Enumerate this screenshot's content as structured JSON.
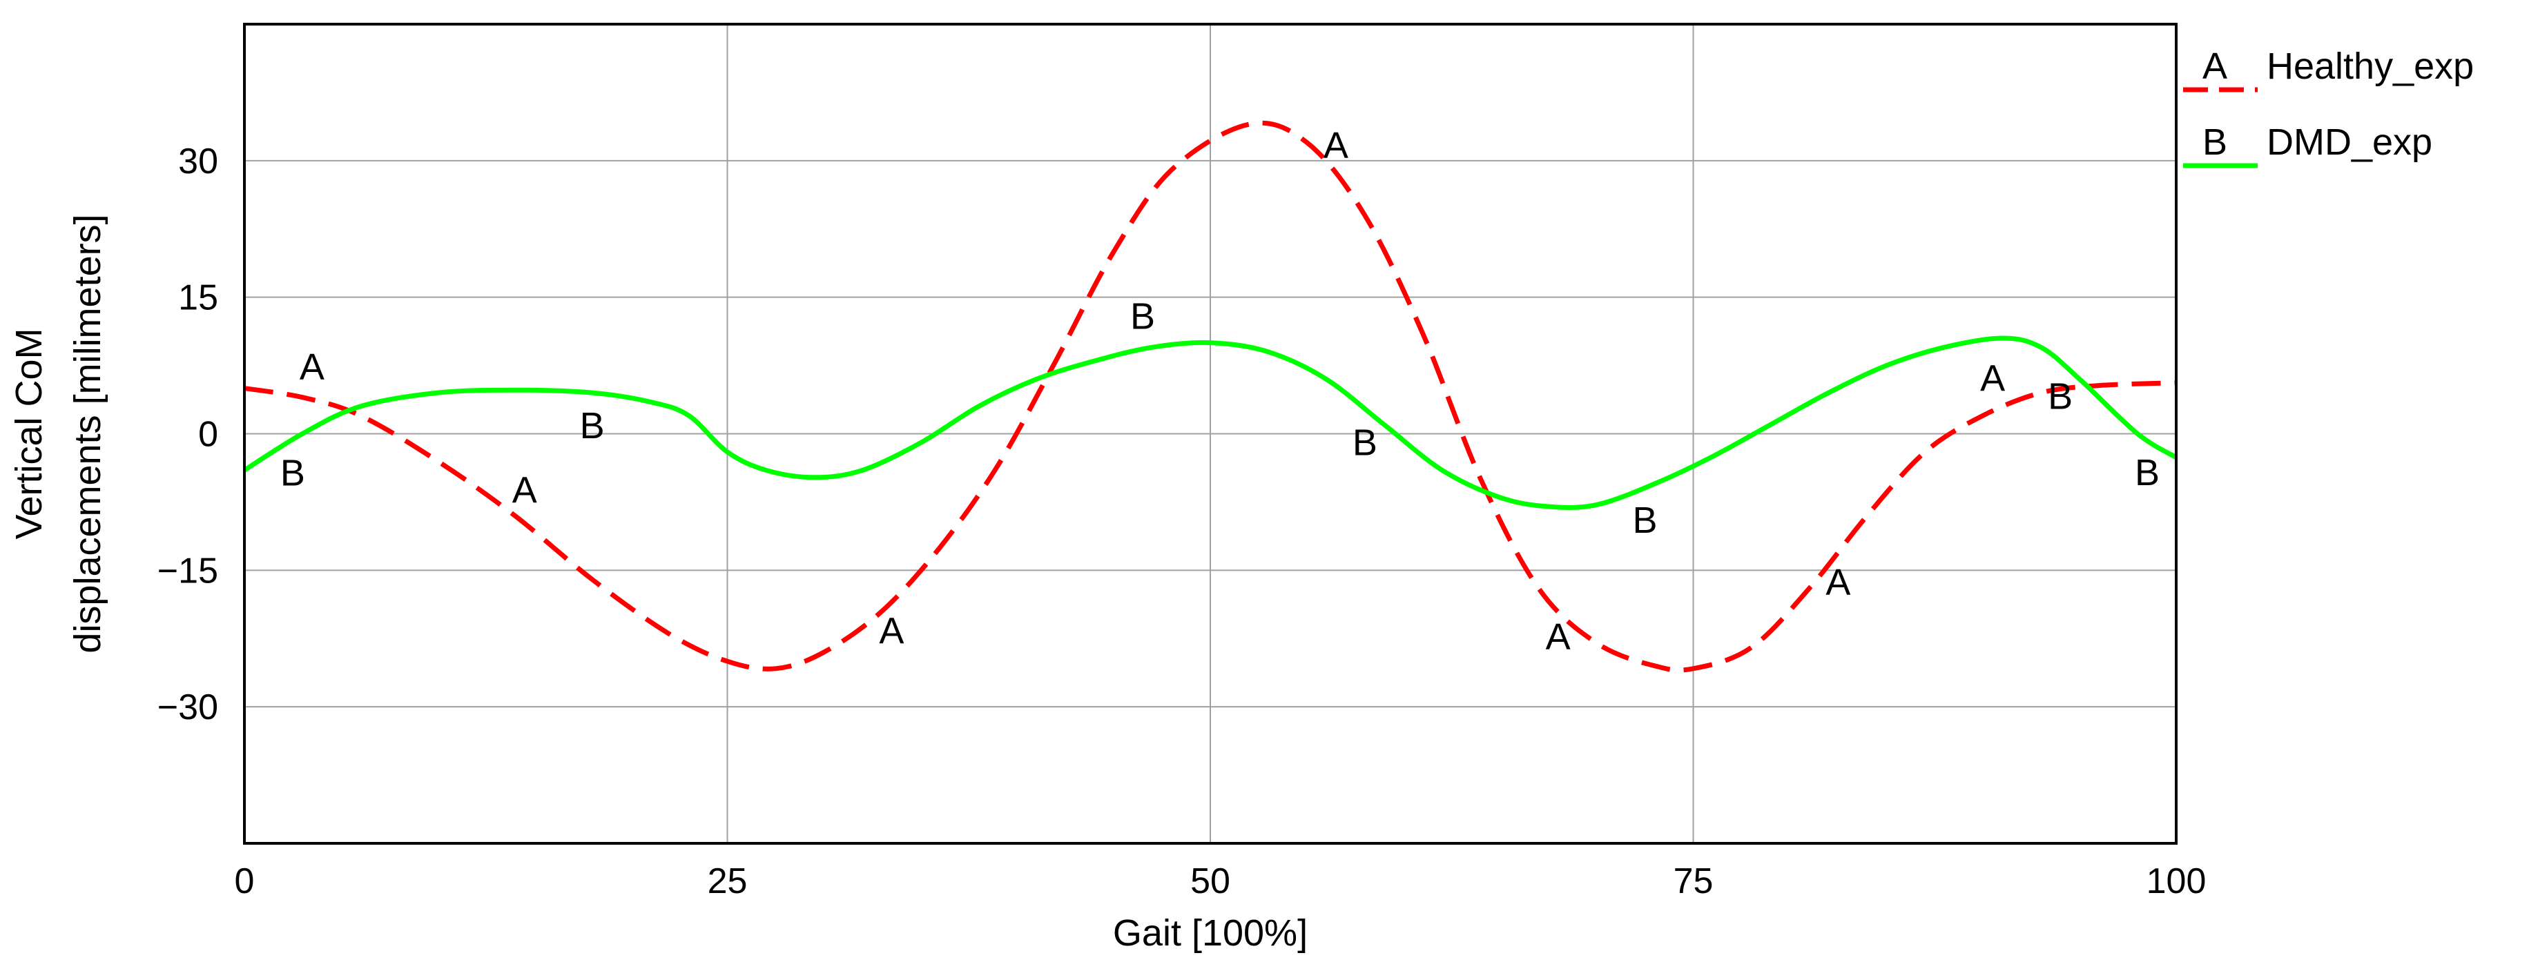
{
  "chart_data": {
    "type": "line",
    "title": "",
    "xlabel": "Gait [100%]",
    "ylabel_lines": [
      "Vertical CoM",
      "displacements [milimeters]"
    ],
    "xlim": [
      0,
      100
    ],
    "ylim": [
      -45,
      45
    ],
    "xticks": [
      0,
      25,
      50,
      75,
      100
    ],
    "xtick_labels": [
      "0",
      "25",
      "50",
      "75",
      "100"
    ],
    "yticks": [
      30,
      15,
      0,
      -15,
      -30
    ],
    "ytick_labels": [
      "30",
      "15",
      "0",
      "−15",
      "−30"
    ],
    "grid": true,
    "legend_position": "outside-top-right",
    "series": [
      {
        "name": "Healthy_exp",
        "marker": "A",
        "color": "#ff0000",
        "style": "dashed",
        "x": [
          0,
          3,
          6,
          10,
          14,
          18,
          22,
          25,
          27.5,
          30,
          33,
          36,
          39,
          42,
          45,
          48,
          52,
          55,
          58,
          61,
          64,
          67,
          70,
          73,
          75,
          78,
          81,
          84,
          87,
          90,
          93,
          96,
          100
        ],
        "y": [
          5,
          4,
          2,
          -3,
          -9,
          -16,
          -22,
          -25,
          -25.8,
          -24,
          -19.5,
          -12.5,
          -3.5,
          8,
          20,
          29,
          34,
          32,
          24,
          11,
          -5,
          -17,
          -23,
          -25.5,
          -25.8,
          -23.5,
          -17,
          -9,
          -2,
          2,
          4.5,
          5.3,
          5.6
        ],
        "marker_x": [
          3.5,
          14.5,
          33.5,
          56.5,
          68,
          82.5,
          90.5
        ]
      },
      {
        "name": "DMD_exp",
        "marker": "B",
        "color": "#00ff00",
        "style": "solid",
        "x": [
          0,
          3,
          6,
          10,
          14,
          18,
          21,
          23,
          25,
          27,
          29.5,
          32,
          35,
          38,
          41,
          44,
          47,
          50,
          53,
          56,
          59,
          62,
          65,
          67.5,
          70,
          73,
          76,
          79,
          82,
          85,
          88,
          91,
          93,
          95,
          98,
          100
        ],
        "y": [
          -4,
          0,
          3,
          4.5,
          4.8,
          4.5,
          3.5,
          2,
          -2,
          -4,
          -4.8,
          -4,
          -1,
          3,
          6,
          8,
          9.5,
          10,
          9,
          6,
          1,
          -4,
          -7,
          -8,
          -7.8,
          -5.5,
          -2.5,
          1,
          4.5,
          7.5,
          9.5,
          10.5,
          9.5,
          6,
          0,
          -2.6
        ],
        "marker_x": [
          2.5,
          18,
          46.5,
          58,
          72.5,
          94,
          98.5
        ]
      }
    ]
  }
}
